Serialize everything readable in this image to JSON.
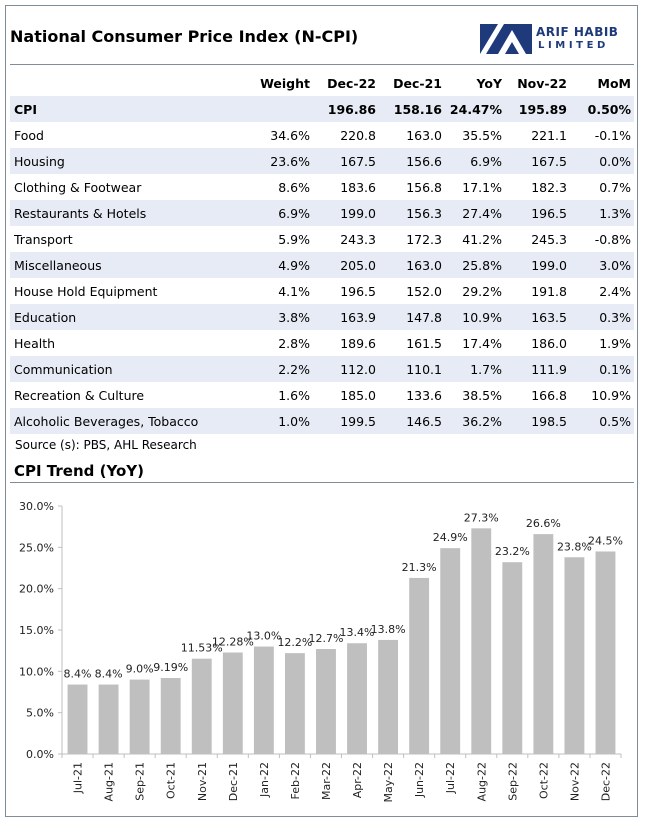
{
  "header": {
    "title": "National Consumer Price Index (N-CPI)",
    "logo_line1": "ARIF HABIB",
    "logo_line2": "LIMITED",
    "logo_color": "#1f3a7a"
  },
  "table": {
    "columns": [
      "",
      "Weight",
      "Dec-22",
      "Dec-21",
      "YoY",
      "Nov-22",
      "MoM"
    ],
    "rows": [
      [
        "CPI",
        "",
        "196.86",
        "158.16",
        "24.47%",
        "195.89",
        "0.50%"
      ],
      [
        "Food",
        "34.6%",
        "220.8",
        "163.0",
        "35.5%",
        "221.1",
        "-0.1%"
      ],
      [
        "Housing",
        "23.6%",
        "167.5",
        "156.6",
        "6.9%",
        "167.5",
        "0.0%"
      ],
      [
        "Clothing & Footwear",
        "8.6%",
        "183.6",
        "156.8",
        "17.1%",
        "182.3",
        "0.7%"
      ],
      [
        "Restaurants & Hotels",
        "6.9%",
        "199.0",
        "156.3",
        "27.4%",
        "196.5",
        "1.3%"
      ],
      [
        "Transport",
        "5.9%",
        "243.3",
        "172.3",
        "41.2%",
        "245.3",
        "-0.8%"
      ],
      [
        "Miscellaneous",
        "4.9%",
        "205.0",
        "163.0",
        "25.8%",
        "199.0",
        "3.0%"
      ],
      [
        "House Hold Equipment",
        "4.1%",
        "196.5",
        "152.0",
        "29.2%",
        "191.8",
        "2.4%"
      ],
      [
        "Education",
        "3.8%",
        "163.9",
        "147.8",
        "10.9%",
        "163.5",
        "0.3%"
      ],
      [
        "Health",
        "2.8%",
        "189.6",
        "161.5",
        "17.4%",
        "186.0",
        "1.9%"
      ],
      [
        "Communication",
        "2.2%",
        "112.0",
        "110.1",
        "1.7%",
        "111.9",
        "0.1%"
      ],
      [
        "Recreation & Culture",
        "1.6%",
        "185.0",
        "133.6",
        "38.5%",
        "166.8",
        "10.9%"
      ],
      [
        "Alcoholic Beverages, Tobacco",
        "1.0%",
        "199.5",
        "146.5",
        "36.2%",
        "198.5",
        "0.5%"
      ]
    ],
    "band_color": "#e7ebf5"
  },
  "source": "Source (s): PBS, AHL Research",
  "chart_data": {
    "type": "bar",
    "title": "CPI Trend (YoY)",
    "categories": [
      "Jul-21",
      "Aug-21",
      "Sep-21",
      "Oct-21",
      "Nov-21",
      "Dec-21",
      "Jan-22",
      "Feb-22",
      "Mar-22",
      "Apr-22",
      "May-22",
      "Jun-22",
      "Jul-22",
      "Aug-22",
      "Sep-22",
      "Oct-22",
      "Nov-22",
      "Dec-22"
    ],
    "values": [
      8.4,
      8.4,
      9.0,
      9.19,
      11.53,
      12.28,
      13.0,
      12.2,
      12.7,
      13.4,
      13.8,
      21.3,
      24.9,
      27.3,
      23.2,
      26.6,
      23.8,
      24.5
    ],
    "data_labels": [
      "8.4%",
      "8.4%",
      "9.0%",
      "9.19%",
      "11.53%",
      "12.28%",
      "13.0%",
      "12.2%",
      "12.7%",
      "13.4%",
      "13.8%",
      "21.3%",
      "24.9%",
      "27.3%",
      "23.2%",
      "26.6%",
      "23.8%",
      "24.5%"
    ],
    "ylim": [
      0,
      30
    ],
    "yticks": [
      "0.0%",
      "5.0%",
      "10.0%",
      "15.0%",
      "20.0%",
      "25.0%",
      "30.0%"
    ],
    "ytick_values": [
      0,
      5,
      10,
      15,
      20,
      25,
      30
    ],
    "grid": false,
    "bar_color": "#bfbfbf"
  }
}
